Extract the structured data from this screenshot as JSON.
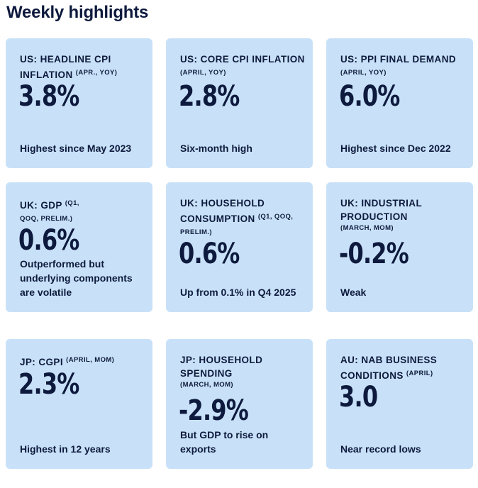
{
  "title": "Weekly highlights",
  "cards": [
    {
      "label": "US: HEADLINE CPI INFLATION",
      "qualifier": "(APR., YOY)",
      "value": "3.8%",
      "note": "Highest since May 2023"
    },
    {
      "label": "US: CORE CPI INFLATION",
      "qualifier": "(APRIL, YOY)",
      "value": "2.8%",
      "note": "Six-month high"
    },
    {
      "label": "US: PPI FINAL DEMAND",
      "qualifier": "(APRIL, YOY)",
      "value": "6.0%",
      "note": "Highest since Dec 2022"
    },
    {
      "label": "UK: GDP",
      "qualifier": "(Q1, QOQ, PRELIM.)",
      "value": "0.6%",
      "note": "Outperformed but underlying components are volatile"
    },
    {
      "label": "UK: HOUSEHOLD CONSUMPTION",
      "qualifier": "(Q1, QOQ, PRELIM.)",
      "value": "0.6%",
      "note": "Up from 0.1% in Q4 2025"
    },
    {
      "label": "UK: INDUSTRIAL PRODUCTION",
      "qualifier": "(MARCH, MOM)",
      "value": "-0.2%",
      "note": "Weak"
    },
    {
      "label": "JP: CGPI",
      "qualifier": "(APRIL, MOM)",
      "value": "2.3%",
      "note": "Highest in 12 years"
    },
    {
      "label": "JP: HOUSEHOLD SPENDING",
      "qualifier": "(MARCH, MOM)",
      "value": "-2.9%",
      "note": "But GDP to rise on exports"
    },
    {
      "label": "AU: NAB BUSINESS CONDITIONS",
      "qualifier": "(APRIL)",
      "value": "3.0",
      "note": "Near record lows"
    }
  ]
}
